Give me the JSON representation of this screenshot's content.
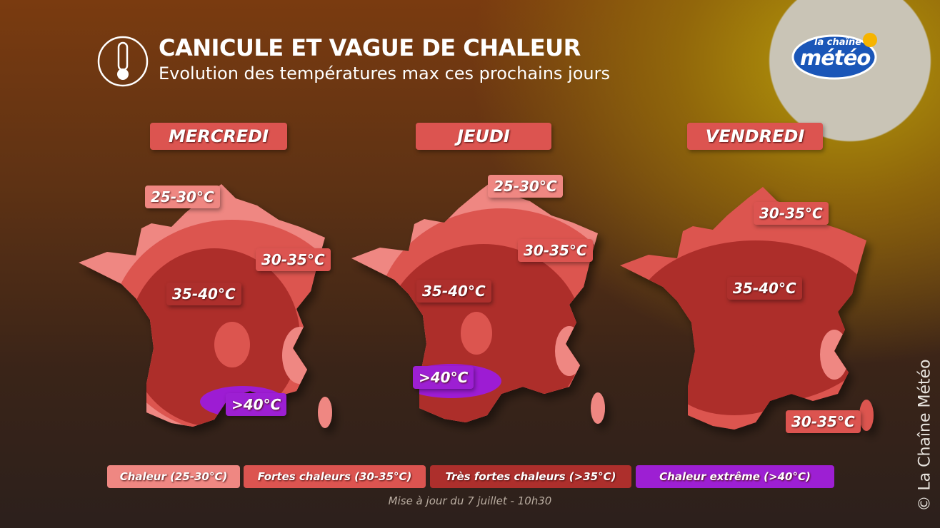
{
  "header": {
    "title": "CANICULE ET VAGUE DE CHALEUR",
    "subtitle": "Evolution des températures max ces prochains jours"
  },
  "logo": {
    "top": "la chaîne",
    "bottom": "météo"
  },
  "days": [
    {
      "name": "MERCREDI",
      "labels": [
        "25-30°C",
        "30-35°C",
        "35-40°C",
        ">40°C"
      ]
    },
    {
      "name": "JEUDI",
      "labels": [
        "25-30°C",
        "30-35°C",
        "35-40°C",
        ">40°C"
      ]
    },
    {
      "name": "VENDREDI",
      "labels": [
        "30-35°C",
        "35-40°C",
        "30-35°C"
      ]
    }
  ],
  "legend": [
    "Chaleur (25-30°C)",
    "Fortes chaleurs (30-35°C)",
    "Très fortes chaleurs (>35°C)",
    "Chaleur extrême (>40°C)"
  ],
  "note": "Mise à jour du 7 juillet - 10h30",
  "copyright": "© La Chaîne Météo"
}
